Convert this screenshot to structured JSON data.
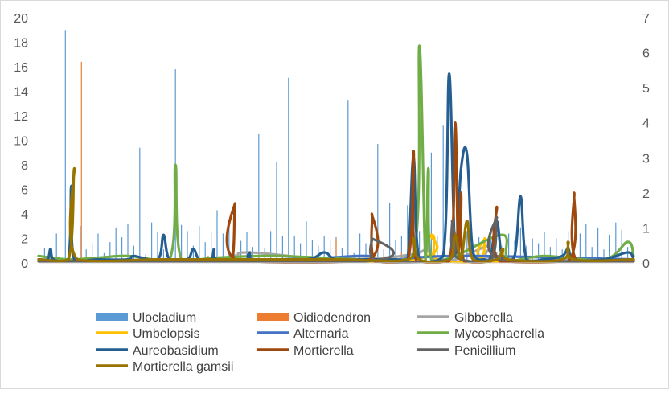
{
  "chart_data": {
    "type": "line",
    "title": "",
    "xlabel": "",
    "ylabel": "",
    "y_left": {
      "ylim": [
        0,
        20
      ],
      "ticks": [
        "0",
        "2",
        "4",
        "6",
        "8",
        "10",
        "12",
        "14",
        "16",
        "18",
        "20"
      ]
    },
    "y_right": {
      "ylim": [
        0,
        7
      ],
      "ticks": [
        "0",
        "1",
        "2",
        "3",
        "4",
        "5",
        "6",
        "7"
      ]
    },
    "x": {
      "min": 0,
      "max": 100
    },
    "grid": false,
    "legend_position": "bottom",
    "series": [
      {
        "name": "Ulocladium",
        "chart": "bar",
        "axis": "left",
        "color": "#5b9bd5",
        "points": [
          [
            1,
            1.2
          ],
          [
            3,
            2.4
          ],
          [
            4.5,
            19
          ],
          [
            6,
            0.9
          ],
          [
            7,
            3
          ],
          [
            8,
            1.1
          ],
          [
            9,
            1.6
          ],
          [
            10,
            2.4
          ],
          [
            11,
            0.8
          ],
          [
            12,
            1.7
          ],
          [
            13,
            2.9
          ],
          [
            14,
            2.1
          ],
          [
            15,
            3.2
          ],
          [
            16,
            1.4
          ],
          [
            17,
            9.4
          ],
          [
            18,
            0.7
          ],
          [
            19,
            3.3
          ],
          [
            20,
            2.5
          ],
          [
            21,
            1.1
          ],
          [
            23,
            15.8
          ],
          [
            24,
            3.1
          ],
          [
            25,
            2.6
          ],
          [
            26,
            1.4
          ],
          [
            27,
            3.0
          ],
          [
            28,
            1.7
          ],
          [
            29,
            2.5
          ],
          [
            30,
            4.3
          ],
          [
            31,
            2.4
          ],
          [
            32,
            2.9
          ],
          [
            33,
            0.7
          ],
          [
            34,
            1.8
          ],
          [
            35,
            2.5
          ],
          [
            36,
            1.3
          ],
          [
            37,
            10.5
          ],
          [
            38,
            1.2
          ],
          [
            39,
            2.6
          ],
          [
            40,
            8.2
          ],
          [
            41,
            2.2
          ],
          [
            42,
            15.1
          ],
          [
            43,
            2.2
          ],
          [
            44,
            1.6
          ],
          [
            45,
            3.4
          ],
          [
            46,
            1.9
          ],
          [
            47,
            1.4
          ],
          [
            48,
            2.2
          ],
          [
            49,
            1.8
          ],
          [
            50,
            2.1
          ],
          [
            51,
            1.2
          ],
          [
            52,
            13.3
          ],
          [
            53,
            0.8
          ],
          [
            54,
            2.4
          ],
          [
            55,
            1.6
          ],
          [
            56,
            2.6
          ],
          [
            57,
            9.7
          ],
          [
            58,
            1.1
          ],
          [
            59,
            4.9
          ],
          [
            60,
            1.9
          ],
          [
            61,
            2.2
          ],
          [
            62,
            4.7
          ],
          [
            63,
            3.4
          ],
          [
            64,
            2.6
          ],
          [
            66,
            9.0
          ],
          [
            67,
            2.2
          ],
          [
            68,
            11.2
          ],
          [
            69,
            1.4
          ],
          [
            70,
            2.3
          ],
          [
            71,
            1.3
          ],
          [
            72,
            2.6
          ],
          [
            73,
            1.6
          ],
          [
            74,
            2.1
          ],
          [
            75,
            1.2
          ],
          [
            76,
            2.2
          ],
          [
            77,
            0.9
          ],
          [
            78,
            1.4
          ],
          [
            79,
            2.4
          ],
          [
            80,
            1.8
          ],
          [
            81,
            2.9
          ],
          [
            82,
            1.4
          ],
          [
            83,
            2.0
          ],
          [
            84,
            1.6
          ],
          [
            85,
            2.5
          ],
          [
            86,
            1.3
          ],
          [
            87,
            2.0
          ],
          [
            88,
            1.1
          ],
          [
            89,
            2.6
          ],
          [
            90,
            1.6
          ],
          [
            91,
            2.4
          ],
          [
            92,
            3.2
          ],
          [
            93,
            1.3
          ],
          [
            94,
            2.9
          ],
          [
            95,
            1.1
          ],
          [
            96,
            2.3
          ],
          [
            97,
            3.3
          ],
          [
            98,
            2.7
          ],
          [
            99,
            1.3
          ]
        ]
      },
      {
        "name": "Oidiodendron",
        "chart": "bar",
        "axis": "left",
        "color": "#ed7d31",
        "points": [
          [
            7.2,
            16.4
          ],
          [
            28.5,
            0.6
          ],
          [
            50,
            2.0
          ],
          [
            61,
            0.9
          ],
          [
            73,
            1.1
          ]
        ]
      },
      {
        "name": "Gibberella",
        "chart": "line",
        "axis": "right",
        "color": "#a5a5a5",
        "points": [
          [
            0,
            0.1
          ],
          [
            30,
            0.1
          ],
          [
            35,
            0.3
          ],
          [
            50,
            0.1
          ],
          [
            64,
            0.3
          ],
          [
            65,
            0.9
          ],
          [
            66,
            0.2
          ],
          [
            70,
            0.1
          ],
          [
            76,
            0.5
          ],
          [
            77,
            0.1
          ],
          [
            100,
            0.1
          ]
        ]
      },
      {
        "name": "Umbelopsis",
        "chart": "line",
        "axis": "right",
        "color": "#ffc000",
        "points": [
          [
            0,
            0.05
          ],
          [
            60,
            0.05
          ],
          [
            66,
            0.8
          ],
          [
            67,
            0.1
          ],
          [
            74,
            0.05
          ],
          [
            75,
            0.7
          ],
          [
            76,
            0.05
          ],
          [
            100,
            0.05
          ]
        ]
      },
      {
        "name": "Alternaria",
        "chart": "line",
        "axis": "right",
        "color": "#4472c4",
        "points": [
          [
            0,
            0.05
          ],
          [
            40,
            0.1
          ],
          [
            55,
            0.2
          ],
          [
            57,
            0.05
          ],
          [
            70,
            0.2
          ],
          [
            100,
            0.1
          ]
        ]
      },
      {
        "name": "Mycosphaerella",
        "chart": "line",
        "axis": "right",
        "color": "#70ad47",
        "points": [
          [
            0,
            0.2
          ],
          [
            5,
            0.1
          ],
          [
            10,
            0.15
          ],
          [
            15,
            0.2
          ],
          [
            22,
            0.1
          ],
          [
            23,
            2.8
          ],
          [
            24,
            0.1
          ],
          [
            30,
            0.15
          ],
          [
            40,
            0.2
          ],
          [
            55,
            0.1
          ],
          [
            63,
            0.2
          ],
          [
            64,
            6.2
          ],
          [
            65,
            0.1
          ],
          [
            65.5,
            2.7
          ],
          [
            66,
            0.1
          ],
          [
            70,
            0.2
          ],
          [
            78,
            0.8
          ],
          [
            79,
            0.1
          ],
          [
            85,
            0.2
          ],
          [
            95,
            0.1
          ],
          [
            99,
            0.6
          ],
          [
            100,
            0.2
          ]
        ]
      },
      {
        "name": "Aureobasidium",
        "chart": "line",
        "axis": "right",
        "color": "#255e91",
        "points": [
          [
            0,
            0.1
          ],
          [
            1.5,
            0.1
          ],
          [
            2,
            0.4
          ],
          [
            2.5,
            0.1
          ],
          [
            5,
            0.1
          ],
          [
            5.5,
            2.2
          ],
          [
            6,
            0.1
          ],
          [
            10,
            0.1
          ],
          [
            15,
            0.1
          ],
          [
            16,
            0.2
          ],
          [
            20,
            0.1
          ],
          [
            21,
            0.8
          ],
          [
            22,
            0.1
          ],
          [
            25,
            0.1
          ],
          [
            26,
            0.4
          ],
          [
            27,
            0.1
          ],
          [
            29,
            0.1
          ],
          [
            29.5,
            0.4
          ],
          [
            30,
            0.1
          ],
          [
            35,
            0.1
          ],
          [
            35.5,
            0.3
          ],
          [
            36,
            0.1
          ],
          [
            45,
            0.1
          ],
          [
            48,
            0.3
          ],
          [
            50,
            0.1
          ],
          [
            55,
            0.1
          ],
          [
            60,
            0.1
          ],
          [
            62,
            0.1
          ],
          [
            63,
            3.0
          ],
          [
            64,
            0.1
          ],
          [
            68,
            0.2
          ],
          [
            69,
            5.4
          ],
          [
            70,
            0.3
          ],
          [
            71,
            2.7
          ],
          [
            72,
            3.1
          ],
          [
            73,
            0.3
          ],
          [
            75,
            0.1
          ],
          [
            76,
            0.2
          ],
          [
            77,
            1.2
          ],
          [
            78,
            0.1
          ],
          [
            80,
            0.2
          ],
          [
            81,
            1.9
          ],
          [
            82,
            0.1
          ],
          [
            85,
            0.1
          ],
          [
            88,
            0.2
          ],
          [
            89,
            0.4
          ],
          [
            90,
            0.1
          ],
          [
            95,
            0.1
          ],
          [
            99,
            0.3
          ],
          [
            100,
            0.1
          ]
        ]
      },
      {
        "name": "Mortierella",
        "chart": "line",
        "axis": "right",
        "color": "#9e480e",
        "points": [
          [
            0,
            0.05
          ],
          [
            30,
            0.05
          ],
          [
            32.5,
            0.05
          ],
          [
            33,
            1.7
          ],
          [
            33.5,
            0.05
          ],
          [
            55,
            0.05
          ],
          [
            56,
            1.4
          ],
          [
            56.5,
            0.05
          ],
          [
            62,
            0.05
          ],
          [
            63,
            3.2
          ],
          [
            63.5,
            0.05
          ],
          [
            69,
            0.05
          ],
          [
            70,
            4.0
          ],
          [
            70.5,
            0.3
          ],
          [
            71,
            2.0
          ],
          [
            71.5,
            0.05
          ],
          [
            76,
            0.05
          ],
          [
            77,
            1.6
          ],
          [
            77.5,
            0.05
          ],
          [
            89,
            0.05
          ],
          [
            90,
            2.0
          ],
          [
            90.5,
            0.05
          ],
          [
            100,
            0.05
          ]
        ]
      },
      {
        "name": "Penicillium",
        "chart": "line",
        "axis": "right",
        "color": "#636363",
        "points": [
          [
            0,
            0.05
          ],
          [
            55,
            0.05
          ],
          [
            56,
            0.7
          ],
          [
            57,
            0.05
          ],
          [
            69,
            0.1
          ],
          [
            69.5,
            1.2
          ],
          [
            70,
            0.2
          ],
          [
            76,
            0.1
          ],
          [
            77,
            1.3
          ],
          [
            77.5,
            0.1
          ],
          [
            100,
            0.05
          ]
        ]
      },
      {
        "name": "Mortierella gamsii",
        "chart": "line",
        "axis": "right",
        "color": "#997300",
        "points": [
          [
            0,
            0.1
          ],
          [
            5,
            0.1
          ],
          [
            6,
            2.7
          ],
          [
            6.5,
            0.1
          ],
          [
            20,
            0.1
          ],
          [
            23,
            0.1
          ],
          [
            35,
            0.1
          ],
          [
            50,
            0.1
          ],
          [
            62,
            0.1
          ],
          [
            63,
            0.7
          ],
          [
            64,
            0.1
          ],
          [
            69,
            0.1
          ],
          [
            70,
            0.8
          ],
          [
            71,
            0.1
          ],
          [
            72,
            1.2
          ],
          [
            73,
            0.1
          ],
          [
            77,
            0.1
          ],
          [
            78,
            0.4
          ],
          [
            79,
            0.1
          ],
          [
            88,
            0.1
          ],
          [
            89,
            0.6
          ],
          [
            90,
            0.1
          ],
          [
            100,
            0.1
          ]
        ]
      }
    ]
  }
}
